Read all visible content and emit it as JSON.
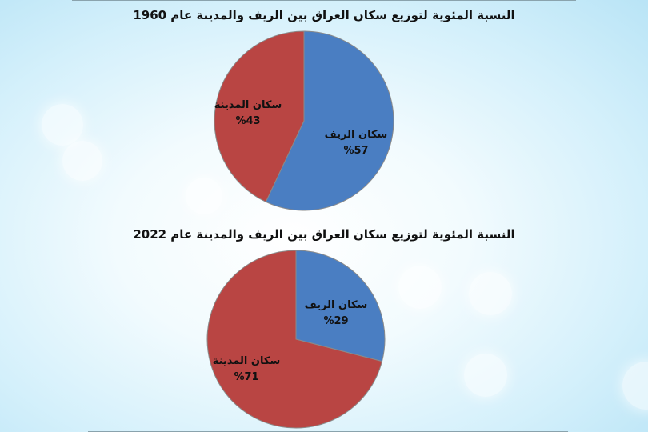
{
  "chart_data": [
    {
      "type": "pie",
      "title": "النسبة المئوية لتوزيع سكان العراق بين الريف والمدينة عام 1960",
      "slices": [
        {
          "label": "سكان الريف",
          "value": 57,
          "value_text": "%57",
          "color": "#4a7ec2"
        },
        {
          "label": "سكان المدينة",
          "value": 43,
          "value_text": "%43",
          "color": "#b94543"
        }
      ]
    },
    {
      "type": "pie",
      "title": "النسبة المئوية لتوزيع سكان العراق بين الريف والمدينة عام 2022",
      "slices": [
        {
          "label": "سكان الريف",
          "value": 29,
          "value_text": "%29",
          "color": "#4a7ec2"
        },
        {
          "label": "سكان المدينة",
          "value": 71,
          "value_text": "%71",
          "color": "#b94543"
        }
      ]
    }
  ]
}
